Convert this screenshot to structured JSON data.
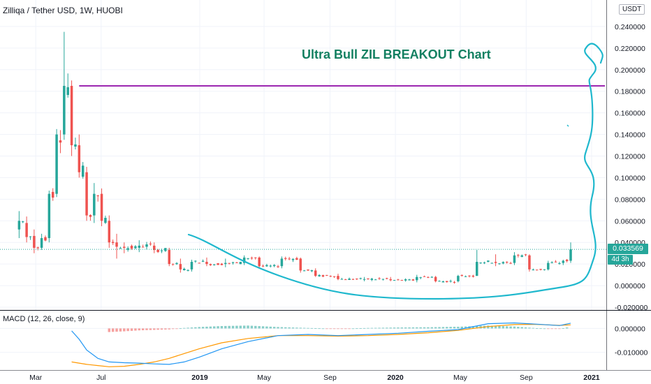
{
  "header": {
    "title": "Zilliqa / Tether USD, 1W, HUOBI",
    "unit": "USDT"
  },
  "annotation": {
    "headline": "Ultra Bull ZIL BREAKOUT Chart",
    "resistance_level": 0.185
  },
  "price_tag": {
    "value": "0.033569",
    "countdown": "4d 3h"
  },
  "macd": {
    "label": "MACD (12, 26, close, 9)"
  },
  "colors": {
    "up": "#26a69a",
    "down": "#ef5350",
    "resistance": "#9c27b0",
    "drawing": "#1fb8cd",
    "macd_line": "#2196f3",
    "signal_line": "#ff9800",
    "headline": "#138061",
    "grid": "#f0f3fa"
  },
  "chart_data": [
    {
      "type": "candlestick",
      "title": "Zilliqa / Tether USD, 1W, HUOBI",
      "y_axis": {
        "ticks": [
          "0.240000",
          "0.220000",
          "0.200000",
          "0.180000",
          "0.160000",
          "0.140000",
          "0.120000",
          "0.100000",
          "0.080000",
          "0.060000",
          "0.040000",
          "0.020000",
          "0.000000",
          "-0.020000"
        ],
        "ylim": [
          -0.02,
          0.26
        ]
      },
      "x_axis": {
        "ticks": [
          {
            "label": "Mar",
            "date": "2018-03"
          },
          {
            "label": "Jul",
            "date": "2018-07"
          },
          {
            "label": "2019",
            "date": "2019-01"
          },
          {
            "label": "May",
            "date": "2019-05"
          },
          {
            "label": "Sep",
            "date": "2019-09"
          },
          {
            "label": "2020",
            "date": "2020-01"
          },
          {
            "label": "May",
            "date": "2020-05"
          },
          {
            "label": "Sep",
            "date": "2020-09"
          },
          {
            "label": "2021",
            "date": "2021-01"
          }
        ],
        "xlim": [
          "2018-01-22",
          "2021-01-18"
        ]
      },
      "keypoints": [
        [
          "2018-01-29",
          0.052,
          0.069,
          0.044,
          0.06
        ],
        [
          "2018-02-12",
          0.058,
          0.064,
          0.04,
          0.045
        ],
        [
          "2018-02-26",
          0.046,
          0.052,
          0.03,
          0.035
        ],
        [
          "2018-03-12",
          0.035,
          0.048,
          0.033,
          0.044
        ],
        [
          "2018-03-26",
          0.044,
          0.088,
          0.04,
          0.085
        ],
        [
          "2018-04-09",
          0.085,
          0.145,
          0.082,
          0.14
        ],
        [
          "2018-04-23",
          0.14,
          0.235,
          0.135,
          0.185
        ],
        [
          "2018-05-07",
          0.185,
          0.19,
          0.12,
          0.13
        ],
        [
          "2018-05-21",
          0.13,
          0.14,
          0.1,
          0.105
        ],
        [
          "2018-06-04",
          0.105,
          0.11,
          0.06,
          0.065
        ],
        [
          "2018-06-18",
          0.065,
          0.095,
          0.058,
          0.085
        ],
        [
          "2018-07-02",
          0.085,
          0.09,
          0.055,
          0.06
        ],
        [
          "2018-07-16",
          0.06,
          0.065,
          0.035,
          0.04
        ],
        [
          "2018-07-30",
          0.04,
          0.048,
          0.025,
          0.036
        ],
        [
          "2018-08-13",
          0.036,
          0.04,
          0.03,
          0.035
        ],
        [
          "2018-09-10",
          0.035,
          0.042,
          0.031,
          0.037
        ],
        [
          "2018-10-08",
          0.037,
          0.04,
          0.03,
          0.033
        ],
        [
          "2018-11-05",
          0.033,
          0.035,
          0.018,
          0.02
        ],
        [
          "2018-11-26",
          0.02,
          0.025,
          0.012,
          0.015
        ],
        [
          "2018-12-17",
          0.015,
          0.024,
          0.013,
          0.022
        ],
        [
          "2019-01-14",
          0.022,
          0.026,
          0.018,
          0.02
        ],
        [
          "2019-02-18",
          0.02,
          0.025,
          0.017,
          0.021
        ],
        [
          "2019-03-25",
          0.021,
          0.028,
          0.019,
          0.026
        ],
        [
          "2019-04-22",
          0.026,
          0.027,
          0.016,
          0.018
        ],
        [
          "2019-06-03",
          0.018,
          0.027,
          0.016,
          0.025
        ],
        [
          "2019-07-08",
          0.025,
          0.026,
          0.012,
          0.014
        ],
        [
          "2019-08-05",
          0.014,
          0.016,
          0.008,
          0.009
        ],
        [
          "2019-09-16",
          0.009,
          0.011,
          0.005,
          0.006
        ],
        [
          "2019-11-04",
          0.006,
          0.008,
          0.004,
          0.006
        ],
        [
          "2019-12-23",
          0.006,
          0.008,
          0.004,
          0.005
        ],
        [
          "2020-02-10",
          0.005,
          0.01,
          0.003,
          0.008
        ],
        [
          "2020-03-16",
          0.008,
          0.009,
          0.003,
          0.004
        ],
        [
          "2020-04-27",
          0.004,
          0.01,
          0.003,
          0.009
        ],
        [
          "2020-06-01",
          0.009,
          0.033,
          0.009,
          0.022
        ],
        [
          "2020-07-06",
          0.022,
          0.029,
          0.018,
          0.021
        ],
        [
          "2020-08-10",
          0.021,
          0.031,
          0.019,
          0.028
        ],
        [
          "2020-09-07",
          0.028,
          0.029,
          0.013,
          0.015
        ],
        [
          "2020-10-12",
          0.015,
          0.023,
          0.014,
          0.021
        ],
        [
          "2020-11-09",
          0.021,
          0.024,
          0.019,
          0.023
        ],
        [
          "2020-11-23",
          0.023,
          0.04,
          0.021,
          0.0336
        ]
      ],
      "keypoints_format": "[week_start, open, high, low, close] — estimated weekly OHLC keypoints read from the chart"
    },
    {
      "type": "line",
      "title": "MACD (12, 26, close, 9)",
      "y_axis": {
        "ticks": [
          "0.000000",
          "-0.010000"
        ],
        "ylim": [
          -0.0165,
          0.0045
        ]
      },
      "series": [
        {
          "name": "MACD",
          "x": [
            "2018-05-07",
            "2018-05-21",
            "2018-06-04",
            "2018-06-25",
            "2018-07-16",
            "2018-08-13",
            "2018-09-10",
            "2018-10-08",
            "2018-11-05",
            "2018-12-03",
            "2018-12-31",
            "2019-02-11",
            "2019-04-01",
            "2019-05-27",
            "2019-07-22",
            "2019-09-16",
            "2019-11-11",
            "2020-01-06",
            "2020-03-02",
            "2020-04-27",
            "2020-06-22",
            "2020-08-10",
            "2020-09-21",
            "2020-11-02",
            "2020-11-23"
          ],
          "values": [
            -0.001,
            -0.0045,
            -0.009,
            -0.0125,
            -0.014,
            -0.0143,
            -0.0145,
            -0.0148,
            -0.015,
            -0.014,
            -0.012,
            -0.0085,
            -0.0055,
            -0.003,
            -0.0025,
            -0.003,
            -0.0025,
            -0.002,
            -0.0012,
            -0.0005,
            0.002,
            0.0023,
            0.0018,
            0.0012,
            0.0022
          ]
        },
        {
          "name": "Signal",
          "x": [
            "2018-05-07",
            "2018-05-21",
            "2018-06-04",
            "2018-06-25",
            "2018-07-16",
            "2018-08-13",
            "2018-09-10",
            "2018-10-08",
            "2018-11-05",
            "2018-12-03",
            "2018-12-31",
            "2019-02-11",
            "2019-04-01",
            "2019-05-27",
            "2019-07-22",
            "2019-09-16",
            "2019-11-11",
            "2020-01-06",
            "2020-03-02",
            "2020-04-27",
            "2020-06-22",
            "2020-08-10",
            "2020-09-21",
            "2020-11-02",
            "2020-11-23"
          ],
          "values": [
            -0.014,
            -0.0145,
            -0.015,
            -0.0155,
            -0.016,
            -0.0158,
            -0.015,
            -0.014,
            -0.0125,
            -0.0105,
            -0.0085,
            -0.006,
            -0.0042,
            -0.003,
            -0.003,
            -0.0032,
            -0.003,
            -0.0025,
            -0.0018,
            -0.0008,
            0.0008,
            0.0016,
            0.0017,
            0.0013,
            0.0015
          ]
        },
        {
          "name": "Histogram",
          "type": "bar",
          "x": [
            "2018-07-16",
            "2018-08-13",
            "2018-09-10",
            "2018-10-08",
            "2018-11-05",
            "2018-12-03",
            "2018-12-31",
            "2019-02-11",
            "2019-04-01",
            "2019-05-27",
            "2019-07-22",
            "2019-09-16",
            "2019-11-11",
            "2020-01-06",
            "2020-03-02",
            "2020-04-27",
            "2020-06-22",
            "2020-08-10",
            "2020-09-21",
            "2020-11-02",
            "2020-11-23"
          ],
          "values": [
            -0.0015,
            -0.0012,
            -0.0008,
            -0.0006,
            -0.0004,
            0.0002,
            0.0006,
            0.001,
            0.0012,
            0.0006,
            0.0002,
            -0.0002,
            0.0002,
            0.0004,
            0.0005,
            0.0007,
            0.0012,
            0.0008,
            0.0001,
            -0.0002,
            0.0007
          ]
        }
      ]
    }
  ]
}
